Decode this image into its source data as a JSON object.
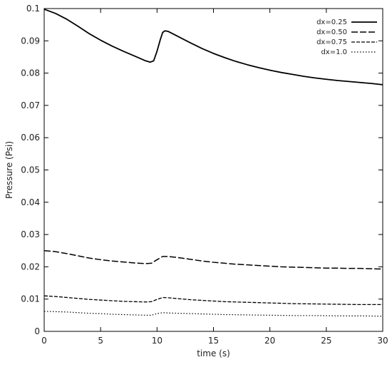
{
  "chart_data": {
    "type": "line",
    "title": "",
    "xlabel": "time (s)",
    "ylabel": "Pressure  (Psi)",
    "xlim": [
      0,
      30
    ],
    "ylim": [
      0,
      0.1
    ],
    "xticks": [
      0,
      5,
      10,
      15,
      20,
      25,
      30
    ],
    "xtick_labels": [
      "0",
      "5",
      "10",
      "15",
      "20",
      "25",
      "30"
    ],
    "yticks": [
      0,
      0.01,
      0.02,
      0.03,
      0.04,
      0.05,
      0.06,
      0.07,
      0.08,
      0.09,
      0.1
    ],
    "ytick_labels": [
      "0",
      "0.01",
      "0.02",
      "0.03",
      "0.04",
      "0.05",
      "0.06",
      "0.07",
      "0.08",
      "0.09",
      "0.1"
    ],
    "grid": false,
    "legend_position": "top-right",
    "series": [
      {
        "name": "dx=0.25",
        "dash": "solid",
        "points": [
          [
            0,
            0.0998
          ],
          [
            1,
            0.0985
          ],
          [
            2,
            0.0967
          ],
          [
            3,
            0.0945
          ],
          [
            4,
            0.0922
          ],
          [
            5,
            0.0902
          ],
          [
            6,
            0.0884
          ],
          [
            7,
            0.0868
          ],
          [
            8,
            0.0853
          ],
          [
            9,
            0.0838
          ],
          [
            9.4,
            0.0834
          ],
          [
            9.7,
            0.0838
          ],
          [
            10,
            0.0868
          ],
          [
            10.3,
            0.0905
          ],
          [
            10.5,
            0.0926
          ],
          [
            10.7,
            0.0931
          ],
          [
            11,
            0.0929
          ],
          [
            12,
            0.0911
          ],
          [
            13,
            0.0893
          ],
          [
            14,
            0.0876
          ],
          [
            15,
            0.0861
          ],
          [
            16,
            0.0848
          ],
          [
            17,
            0.0836
          ],
          [
            18,
            0.0826
          ],
          [
            19,
            0.0817
          ],
          [
            20,
            0.0809
          ],
          [
            21,
            0.0802
          ],
          [
            22,
            0.0796
          ],
          [
            23,
            0.079
          ],
          [
            24,
            0.0785
          ],
          [
            25,
            0.0781
          ],
          [
            26,
            0.0777
          ],
          [
            27,
            0.0774
          ],
          [
            28,
            0.0771
          ],
          [
            29,
            0.0768
          ],
          [
            30,
            0.0764
          ]
        ]
      },
      {
        "name": "dx=0.50",
        "dash": "long-dash",
        "points": [
          [
            0,
            0.025
          ],
          [
            1,
            0.0247
          ],
          [
            2,
            0.0241
          ],
          [
            3,
            0.0234
          ],
          [
            4,
            0.0227
          ],
          [
            5,
            0.0222
          ],
          [
            6,
            0.0218
          ],
          [
            7,
            0.0215
          ],
          [
            8,
            0.0212
          ],
          [
            9,
            0.021
          ],
          [
            9.5,
            0.0211
          ],
          [
            10,
            0.0222
          ],
          [
            10.5,
            0.0232
          ],
          [
            11,
            0.0232
          ],
          [
            12,
            0.0228
          ],
          [
            13,
            0.0223
          ],
          [
            14,
            0.0218
          ],
          [
            15,
            0.0214
          ],
          [
            16,
            0.0211
          ],
          [
            17,
            0.0208
          ],
          [
            18,
            0.0206
          ],
          [
            19,
            0.0204
          ],
          [
            20,
            0.0202
          ],
          [
            21,
            0.02
          ],
          [
            22,
            0.0199
          ],
          [
            23,
            0.0198
          ],
          [
            24,
            0.0197
          ],
          [
            25,
            0.0196
          ],
          [
            26,
            0.0196
          ],
          [
            27,
            0.0195
          ],
          [
            28,
            0.0195
          ],
          [
            29,
            0.0194
          ],
          [
            30,
            0.0193
          ]
        ]
      },
      {
        "name": "dx=0.75",
        "dash": "short-dash",
        "points": [
          [
            0,
            0.011
          ],
          [
            1,
            0.0108
          ],
          [
            2,
            0.0105
          ],
          [
            3,
            0.0102
          ],
          [
            4,
            0.0099
          ],
          [
            5,
            0.0097
          ],
          [
            6,
            0.0095
          ],
          [
            7,
            0.0093
          ],
          [
            8,
            0.0092
          ],
          [
            9,
            0.0091
          ],
          [
            9.5,
            0.0092
          ],
          [
            10,
            0.0099
          ],
          [
            10.5,
            0.0105
          ],
          [
            11,
            0.0104
          ],
          [
            12,
            0.0101
          ],
          [
            13,
            0.0098
          ],
          [
            14,
            0.0096
          ],
          [
            15,
            0.0094
          ],
          [
            16,
            0.0092
          ],
          [
            17,
            0.0091
          ],
          [
            18,
            0.009
          ],
          [
            19,
            0.0089
          ],
          [
            20,
            0.0088
          ],
          [
            22,
            0.0086
          ],
          [
            24,
            0.0085
          ],
          [
            26,
            0.0084
          ],
          [
            28,
            0.0083
          ],
          [
            30,
            0.0083
          ]
        ]
      },
      {
        "name": "dx=1.0",
        "dash": "dotted",
        "points": [
          [
            0,
            0.0062
          ],
          [
            1,
            0.0061
          ],
          [
            2,
            0.006
          ],
          [
            3,
            0.0058
          ],
          [
            4,
            0.0056
          ],
          [
            5,
            0.0055
          ],
          [
            6,
            0.0053
          ],
          [
            7,
            0.0052
          ],
          [
            8,
            0.0051
          ],
          [
            9,
            0.005
          ],
          [
            9.5,
            0.005
          ],
          [
            10,
            0.0055
          ],
          [
            10.5,
            0.0058
          ],
          [
            11,
            0.0057
          ],
          [
            12,
            0.0056
          ],
          [
            14,
            0.0054
          ],
          [
            16,
            0.0052
          ],
          [
            18,
            0.0051
          ],
          [
            20,
            0.005
          ],
          [
            22,
            0.0049
          ],
          [
            24,
            0.0049
          ],
          [
            26,
            0.0048
          ],
          [
            28,
            0.0048
          ],
          [
            30,
            0.0047
          ]
        ]
      }
    ]
  }
}
